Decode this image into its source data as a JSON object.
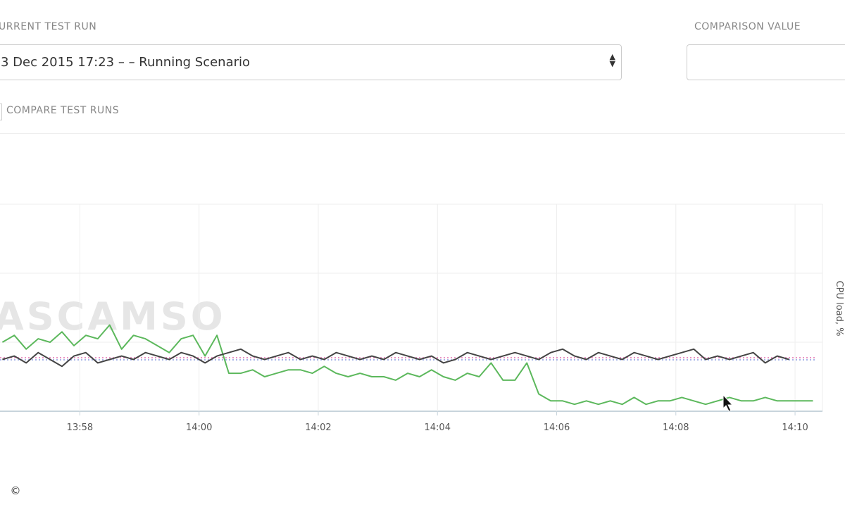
{
  "header": {
    "run_label": "URRENT TEST RUN",
    "run_value": "3 Dec 2015 17:23 – – Running Scenario",
    "comparison_label": "COMPARISON VALUE",
    "compare_label": "COMPARE TEST RUNS"
  },
  "watermark": "ASCAMSO",
  "footer": "©",
  "chart_data": {
    "type": "line",
    "y_label": "CPU load, %",
    "xlim": [
      836.66,
      850.46
    ],
    "xticks": [
      {
        "value": 838,
        "label": "13:58"
      },
      {
        "value": 840,
        "label": "14:00"
      },
      {
        "value": 842,
        "label": "14:02"
      },
      {
        "value": 844,
        "label": "14:04"
      },
      {
        "value": 846,
        "label": "14:06"
      },
      {
        "value": 848,
        "label": "14:08"
      },
      {
        "value": 850,
        "label": "14:10"
      }
    ],
    "ylim": [
      0,
      60
    ],
    "yticks": [
      0,
      20,
      40,
      60
    ],
    "grid": true,
    "reference_lines": [
      {
        "value": 15.5,
        "color": "#e070b0"
      },
      {
        "value": 14.9,
        "color": "#8a9ee0"
      }
    ],
    "series": [
      {
        "color": "#5cb85c",
        "x": [
          836.7,
          836.9,
          837.1,
          837.3,
          837.5,
          837.7,
          837.9,
          838.1,
          838.3,
          838.5,
          838.7,
          838.9,
          839.1,
          839.3,
          839.5,
          839.7,
          839.9,
          840.1,
          840.3,
          840.5,
          840.7,
          840.9,
          841.1,
          841.3,
          841.5,
          841.7,
          841.9,
          842.1,
          842.3,
          842.5,
          842.7,
          842.9,
          843.1,
          843.3,
          843.5,
          843.7,
          843.9,
          844.1,
          844.3,
          844.5,
          844.7,
          844.9,
          845.1,
          845.3,
          845.5,
          845.7,
          845.9,
          846.1,
          846.3,
          846.5,
          846.7,
          846.9,
          847.1,
          847.3,
          847.5,
          847.7,
          847.9,
          848.1,
          848.3,
          848.5,
          848.7,
          848.9,
          849.1,
          849.3,
          849.5,
          849.7,
          849.9,
          850.1,
          850.3
        ],
        "values": [
          20,
          22,
          18,
          21,
          20,
          23,
          19,
          22,
          21,
          25,
          18,
          22,
          21,
          19,
          17,
          21,
          22,
          16,
          22,
          11,
          11,
          12,
          10,
          11,
          12,
          12,
          11,
          13,
          11,
          10,
          11,
          10,
          10,
          9,
          11,
          10,
          12,
          10,
          9,
          11,
          10,
          14,
          9,
          9,
          14,
          5,
          3,
          3,
          2,
          3,
          2,
          3,
          2,
          4,
          2,
          3,
          3,
          4,
          3,
          2,
          3,
          4,
          3,
          3,
          4,
          3,
          3,
          3,
          3
        ]
      },
      {
        "color": "#444444",
        "x": [
          836.7,
          836.9,
          837.1,
          837.3,
          837.5,
          837.7,
          837.9,
          838.1,
          838.3,
          838.5,
          838.7,
          838.9,
          839.1,
          839.3,
          839.5,
          839.7,
          839.9,
          840.1,
          840.3,
          840.5,
          840.7,
          840.9,
          841.1,
          841.3,
          841.5,
          841.7,
          841.9,
          842.1,
          842.3,
          842.5,
          842.7,
          842.9,
          843.1,
          843.3,
          843.5,
          843.7,
          843.9,
          844.1,
          844.3,
          844.5,
          844.7,
          844.9,
          845.1,
          845.3,
          845.5,
          845.7,
          845.9,
          846.1,
          846.3,
          846.5,
          846.7,
          846.9,
          847.1,
          847.3,
          847.5,
          847.7,
          847.9,
          848.1,
          848.3,
          848.5,
          848.7,
          848.9,
          849.1,
          849.3,
          849.5,
          849.7,
          849.9
        ],
        "values": [
          15,
          16,
          14,
          17,
          15,
          13,
          16,
          17,
          14,
          15,
          16,
          15,
          17,
          16,
          15,
          17,
          16,
          14,
          16,
          17,
          18,
          16,
          15,
          16,
          17,
          15,
          16,
          15,
          17,
          16,
          15,
          16,
          15,
          17,
          16,
          15,
          16,
          14,
          15,
          17,
          16,
          15,
          16,
          17,
          16,
          15,
          17,
          18,
          16,
          15,
          17,
          16,
          15,
          17,
          16,
          15,
          16,
          17,
          18,
          15,
          16,
          15,
          16,
          17,
          14,
          16,
          15
        ]
      }
    ]
  }
}
